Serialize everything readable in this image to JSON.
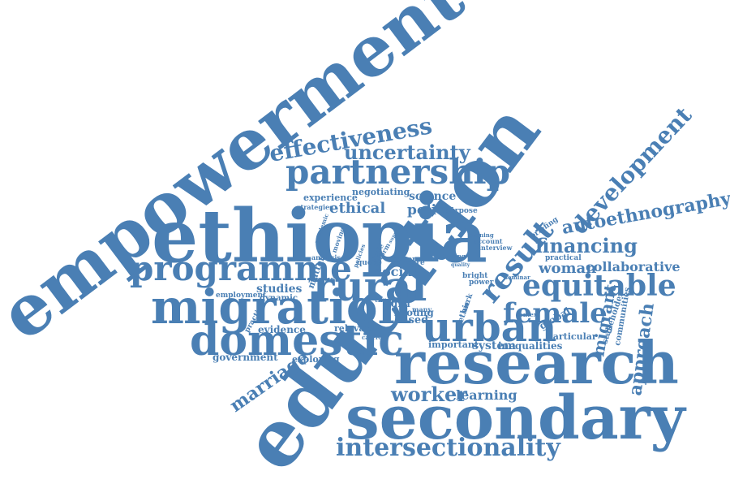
{
  "cloud": {
    "accent_color": "#4a7fb4",
    "background": "#ffffff",
    "words": [
      {
        "id": "empowerment",
        "text": "empowerment"
      },
      {
        "id": "education",
        "text": "education"
      },
      {
        "id": "ethiopia",
        "text": "ethiopia"
      },
      {
        "id": "secondary",
        "text": "secondary"
      },
      {
        "id": "research",
        "text": "research"
      },
      {
        "id": "migration",
        "text": "migration"
      },
      {
        "id": "domestic",
        "text": "domestic"
      },
      {
        "id": "programme",
        "text": "programme"
      },
      {
        "id": "partnership",
        "text": "partnership"
      },
      {
        "id": "rural",
        "text": "rural"
      },
      {
        "id": "urban",
        "text": "urban"
      },
      {
        "id": "intersectionality",
        "text": "intersectionality"
      },
      {
        "id": "equitable",
        "text": "equitable"
      },
      {
        "id": "female",
        "text": "female"
      },
      {
        "id": "development",
        "text": "development"
      },
      {
        "id": "effectiveness",
        "text": "effectiveness"
      },
      {
        "id": "uncertainty",
        "text": "uncertainty"
      },
      {
        "id": "result",
        "text": "result"
      },
      {
        "id": "autoethnography",
        "text": "autoethnography"
      },
      {
        "id": "financing",
        "text": "financing"
      },
      {
        "id": "approach",
        "text": "approach"
      },
      {
        "id": "marriage",
        "text": "marriage"
      },
      {
        "id": "worker",
        "text": "worker"
      },
      {
        "id": "learning",
        "text": "learning"
      },
      {
        "id": "collaborative",
        "text": "collaborative"
      },
      {
        "id": "woman",
        "text": "woman"
      },
      {
        "id": "migrant",
        "text": "migrant"
      },
      {
        "id": "ethical",
        "text": "ethical"
      },
      {
        "id": "policy",
        "text": "policy"
      },
      {
        "id": "science",
        "text": "science"
      },
      {
        "id": "social",
        "text": "social"
      },
      {
        "id": "studies",
        "text": "studies"
      },
      {
        "id": "evidence",
        "text": "evidence"
      },
      {
        "id": "government",
        "text": "government"
      },
      {
        "id": "exploring",
        "text": "exploring"
      },
      {
        "id": "system",
        "text": "system"
      },
      {
        "id": "inequalities",
        "text": "inequalities"
      },
      {
        "id": "important",
        "text": "important"
      },
      {
        "id": "based",
        "text": "based"
      },
      {
        "id": "relevant",
        "text": "relevant"
      },
      {
        "id": "global",
        "text": "global"
      },
      {
        "id": "particular",
        "text": "particular"
      },
      {
        "id": "stakeholder",
        "text": "stakeholder"
      },
      {
        "id": "communities",
        "text": "communities"
      },
      {
        "id": "experience",
        "text": "experience"
      },
      {
        "id": "negotiating",
        "text": "negotiating"
      },
      {
        "id": "strategies",
        "text": "strategies"
      },
      {
        "id": "purpose",
        "text": "purpose"
      },
      {
        "id": "practical",
        "text": "practical"
      },
      {
        "id": "briefing",
        "text": "briefing"
      },
      {
        "id": "employment",
        "text": "employment"
      },
      {
        "id": "dynamic",
        "text": "dynamic"
      },
      {
        "id": "matter",
        "text": "matter"
      },
      {
        "id": "practice",
        "text": "practice"
      },
      {
        "id": "girl",
        "text": "girl"
      },
      {
        "id": "young",
        "text": "young"
      },
      {
        "id": "many",
        "text": "many"
      },
      {
        "id": "care",
        "text": "care"
      },
      {
        "id": "paper",
        "text": "paper"
      },
      {
        "id": "time",
        "text": "time"
      },
      {
        "id": "moving",
        "text": "moving"
      },
      {
        "id": "analysis",
        "text": "analysis"
      },
      {
        "id": "policies",
        "text": "policies"
      },
      {
        "id": "pandemic",
        "text": "pandemic"
      },
      {
        "id": "queue",
        "text": "queue"
      },
      {
        "id": "reform",
        "text": "reform"
      },
      {
        "id": "scale",
        "text": "scale"
      },
      {
        "id": "promise",
        "text": "promise"
      },
      {
        "id": "ethic",
        "text": "ethic"
      },
      {
        "id": "bright",
        "text": "bright"
      },
      {
        "id": "power",
        "text": "power"
      },
      {
        "id": "account",
        "text": "account"
      },
      {
        "id": "interview",
        "text": "interview"
      },
      {
        "id": "evening",
        "text": "evening"
      },
      {
        "id": "seminar",
        "text": "seminar"
      },
      {
        "id": "context",
        "text": "context"
      },
      {
        "id": "careful",
        "text": "careful"
      },
      {
        "id": "finding",
        "text": "finding"
      },
      {
        "id": "quality",
        "text": "quality"
      },
      {
        "id": "support",
        "text": "support"
      },
      {
        "id": "work",
        "text": "work"
      }
    ]
  }
}
